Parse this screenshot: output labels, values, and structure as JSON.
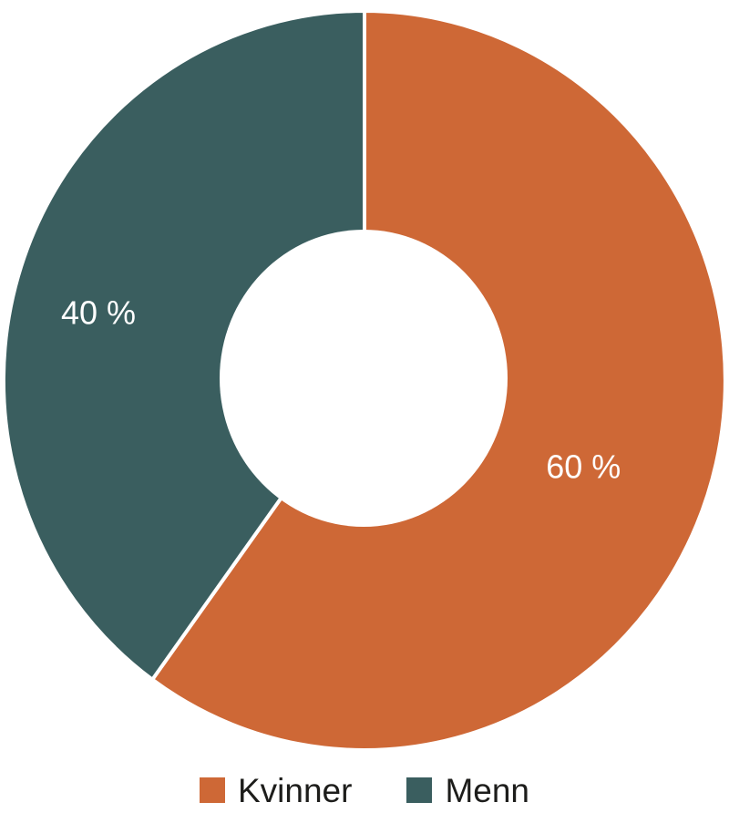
{
  "chart_data": {
    "type": "pie",
    "variant": "donut",
    "title": "",
    "categories": [
      "Kvinner",
      "Menn"
    ],
    "values": [
      60,
      40
    ],
    "unit": "%",
    "slice_labels": [
      "60 %",
      "40 %"
    ],
    "colors": [
      "#ce6836",
      "#3a5e5f"
    ],
    "slice_label_color": "#ffffff",
    "legend_position": "bottom",
    "start_angle_deg": 0,
    "direction": "clockwise",
    "inner_radius_fraction": 0.4,
    "label_angles_deg": [
      111,
      284
    ],
    "label_radius_fractions": [
      0.65,
      0.76
    ],
    "divider_color": "#ffffff"
  },
  "legend": {
    "items": [
      {
        "label": "Kvinner",
        "color": "#ce6836"
      },
      {
        "label": "Menn",
        "color": "#3a5e5f"
      }
    ]
  }
}
